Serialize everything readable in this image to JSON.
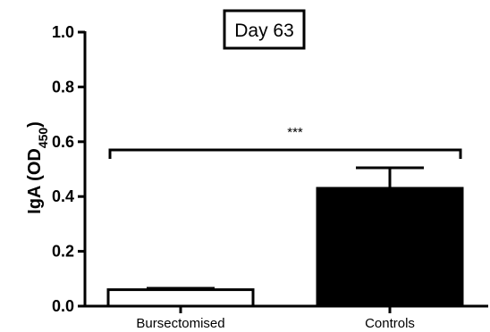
{
  "chart_data": {
    "type": "bar",
    "title": "Day 63",
    "categories": [
      "Bursectomised",
      "Controls"
    ],
    "values": [
      0.06,
      0.43
    ],
    "errors": [
      0.005,
      0.075
    ],
    "bar_fills": [
      "#ffffff",
      "#000000"
    ],
    "ylabel": {
      "main": "IgA (OD",
      "sub": "450",
      "close": ")"
    },
    "ylim": [
      0.0,
      1.0
    ],
    "yticks": [
      "0.0",
      "0.2",
      "0.4",
      "0.6",
      "0.8",
      "1.0"
    ],
    "significance": "***"
  }
}
